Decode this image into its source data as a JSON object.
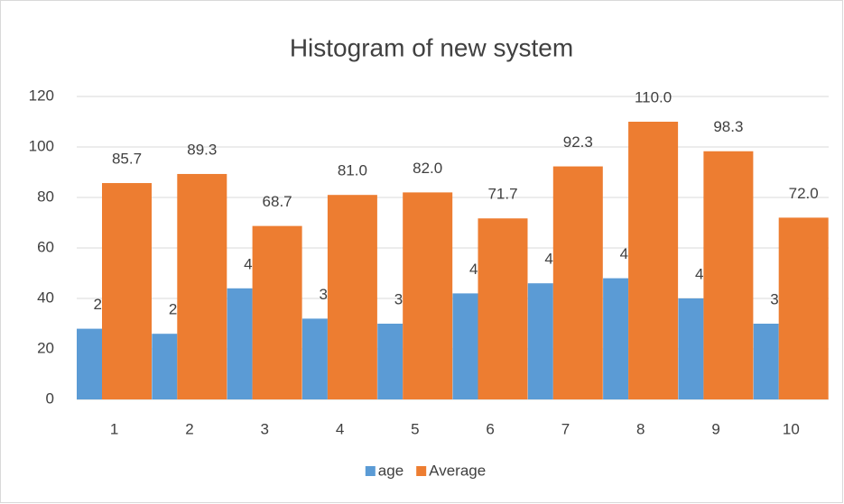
{
  "chart_data": {
    "type": "bar",
    "title": "Histogram of new system",
    "categories": [
      "1",
      "2",
      "3",
      "4",
      "5",
      "6",
      "7",
      "8",
      "9",
      "10"
    ],
    "series": [
      {
        "name": "age",
        "color": "#5b9bd5",
        "values": [
          28,
          26,
          44,
          32,
          30,
          42,
          46,
          48,
          40,
          30
        ]
      },
      {
        "name": "Average",
        "color": "#ed7d31",
        "values": [
          85.7,
          89.3,
          68.7,
          81,
          82,
          71.7,
          92.3,
          110,
          98.3,
          72
        ],
        "value_labels": [
          "85.7",
          "89.3",
          "68.7",
          "81.0",
          "82.0",
          "71.7",
          "92.3",
          "110.0",
          "98.3",
          "72.0"
        ]
      }
    ],
    "ylim": [
      0,
      120
    ],
    "yticks": [
      0,
      20,
      40,
      60,
      80,
      100,
      120
    ],
    "grid": true,
    "legend": "bottom"
  }
}
